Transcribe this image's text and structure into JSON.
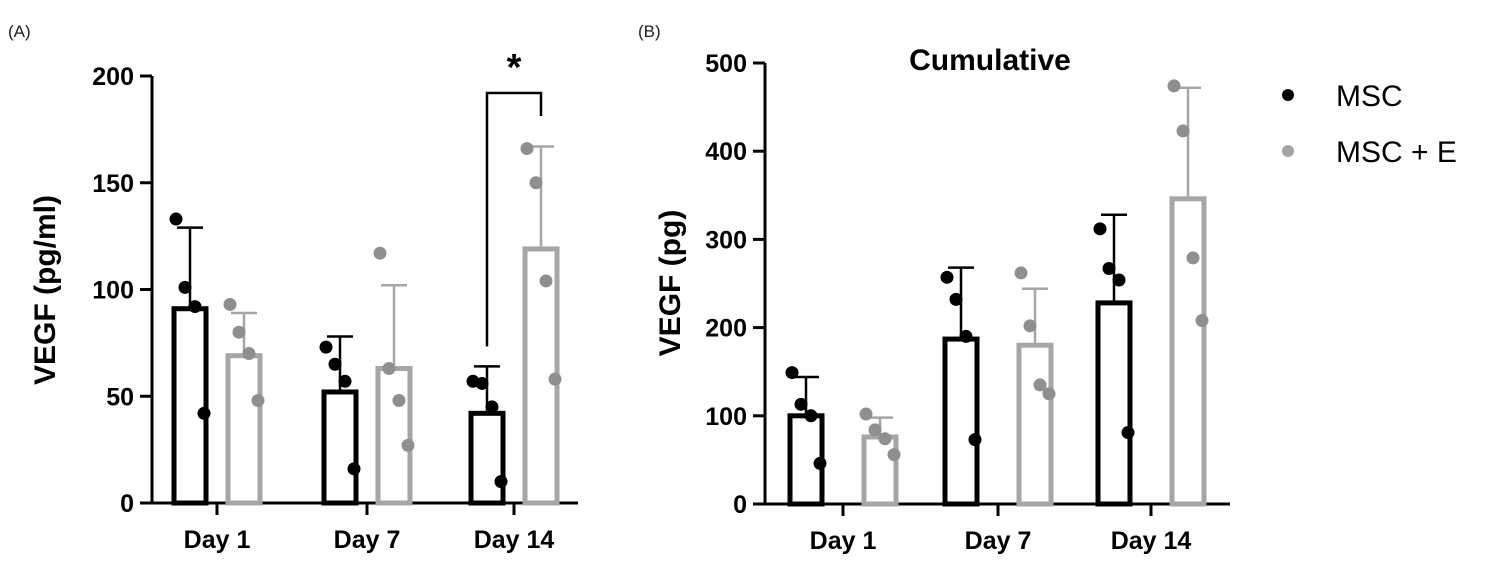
{
  "colors": {
    "msc": "#000000",
    "msc_e": "#a6a6a6",
    "msc_e_points": "#8f8f8f",
    "axis": "#000000"
  },
  "legend": {
    "items": [
      {
        "label": "MSC",
        "color": "#000000"
      },
      {
        "label": "MSC + E",
        "color": "#a6a6a6"
      }
    ],
    "placement": "right"
  },
  "chart_data": [
    {
      "panel_label": "(A)",
      "type": "bar",
      "title": "",
      "ylabel": "VEGF (pg/ml)",
      "ylim": [
        0,
        200
      ],
      "yticks": [
        0,
        50,
        100,
        150,
        200
      ],
      "categories": [
        "Day 1",
        "Day 7",
        "Day 14"
      ],
      "series": [
        {
          "name": "MSC",
          "values": [
            91,
            52,
            42
          ],
          "errors": [
            38,
            26,
            22
          ],
          "points": [
            [
              133,
              101,
              92,
              42
            ],
            [
              73,
              65,
              57,
              16
            ],
            [
              57,
              56,
              45,
              10
            ]
          ]
        },
        {
          "name": "MSC + E",
          "values": [
            69,
            63,
            119
          ],
          "errors": [
            20,
            39,
            48
          ],
          "points": [
            [
              93,
              80,
              70,
              48
            ],
            [
              117,
              63,
              48,
              27
            ],
            [
              166,
              150,
              104,
              58
            ]
          ]
        }
      ],
      "significance": [
        {
          "category": "Day 14",
          "label": "*"
        }
      ]
    },
    {
      "panel_label": "(B)",
      "type": "bar",
      "title": "Cumulative",
      "ylabel": "VEGF (pg)",
      "ylim": [
        0,
        500
      ],
      "yticks": [
        0,
        100,
        200,
        300,
        400,
        500
      ],
      "categories": [
        "Day 1",
        "Day 7",
        "Day 14"
      ],
      "series": [
        {
          "name": "MSC",
          "values": [
            100,
            187,
            228
          ],
          "errors": [
            44,
            81,
            100
          ],
          "points": [
            [
              149,
              113,
              100,
              46
            ],
            [
              257,
              232,
              190,
              73
            ],
            [
              312,
              267,
              254,
              81
            ]
          ]
        },
        {
          "name": "MSC + E",
          "values": [
            76,
            180,
            346
          ],
          "errors": [
            22,
            64,
            126
          ],
          "points": [
            [
              102,
              84,
              74,
              56
            ],
            [
              262,
              202,
              135,
              125
            ],
            [
              474,
              423,
              279,
              208
            ]
          ]
        }
      ]
    }
  ]
}
